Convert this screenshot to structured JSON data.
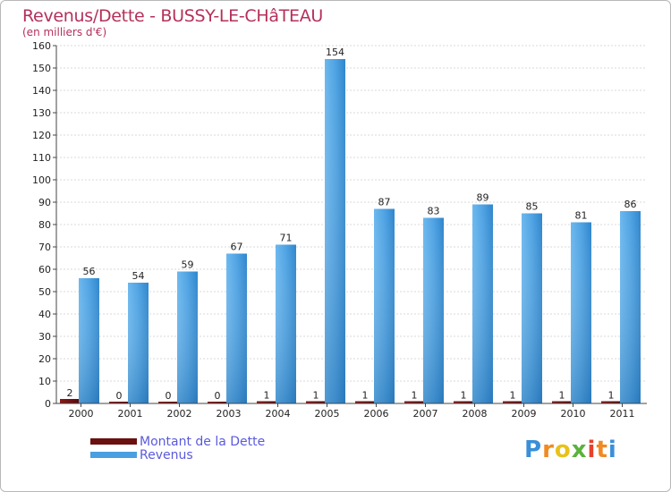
{
  "chart_data": {
    "type": "bar",
    "title": "Revenus/Dette - BUSSY-LE-CHâTEAU",
    "subtitle": "(en milliers d'€)",
    "categories": [
      "2000",
      "2001",
      "2002",
      "2003",
      "2004",
      "2005",
      "2006",
      "2007",
      "2008",
      "2009",
      "2010",
      "2011"
    ],
    "series": [
      {
        "name": "Montant de la Dette",
        "color": "#6b0f0f",
        "values": [
          2,
          0,
          0,
          0,
          1,
          1,
          1,
          1,
          1,
          1,
          1,
          1
        ]
      },
      {
        "name": "Revenus",
        "color": "#4a9fe0",
        "values": [
          56,
          54,
          59,
          67,
          71,
          154,
          87,
          83,
          89,
          85,
          81,
          86
        ]
      }
    ],
    "ylim": [
      0,
      160
    ],
    "yticks": [
      0,
      10,
      20,
      30,
      40,
      50,
      60,
      70,
      80,
      90,
      100,
      110,
      120,
      130,
      140,
      150,
      160
    ],
    "grid": true,
    "legend_position": "bottom-left"
  },
  "brand": {
    "letters": [
      "P",
      "r",
      "o",
      "x",
      "i",
      "t",
      "i"
    ],
    "colors": [
      "#3a8fd8",
      "#f08a24",
      "#e8c21a",
      "#5ab33c",
      "#e8402a",
      "#f08a24",
      "#3a8fd8"
    ]
  }
}
